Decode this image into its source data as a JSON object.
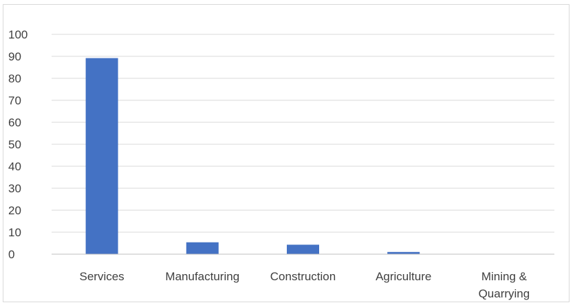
{
  "chart_data": {
    "type": "bar",
    "categories": [
      "Services",
      "Manufacturing",
      "Construction",
      "Agriculture",
      "Mining & Quarrying"
    ],
    "category_lines": [
      [
        "Services"
      ],
      [
        "Manufacturing"
      ],
      [
        "Construction"
      ],
      [
        "Agriculture"
      ],
      [
        "Mining &",
        "Quarrying"
      ]
    ],
    "values": [
      89.2,
      5.4,
      4.3,
      1.0,
      0.1
    ],
    "title": "",
    "xlabel": "",
    "ylabel": "",
    "ylim": [
      0,
      100
    ],
    "yticks": [
      0,
      10,
      20,
      30,
      40,
      50,
      60,
      70,
      80,
      90,
      100
    ],
    "grid": true,
    "legend": "none",
    "bar_color": "#4472c4"
  }
}
